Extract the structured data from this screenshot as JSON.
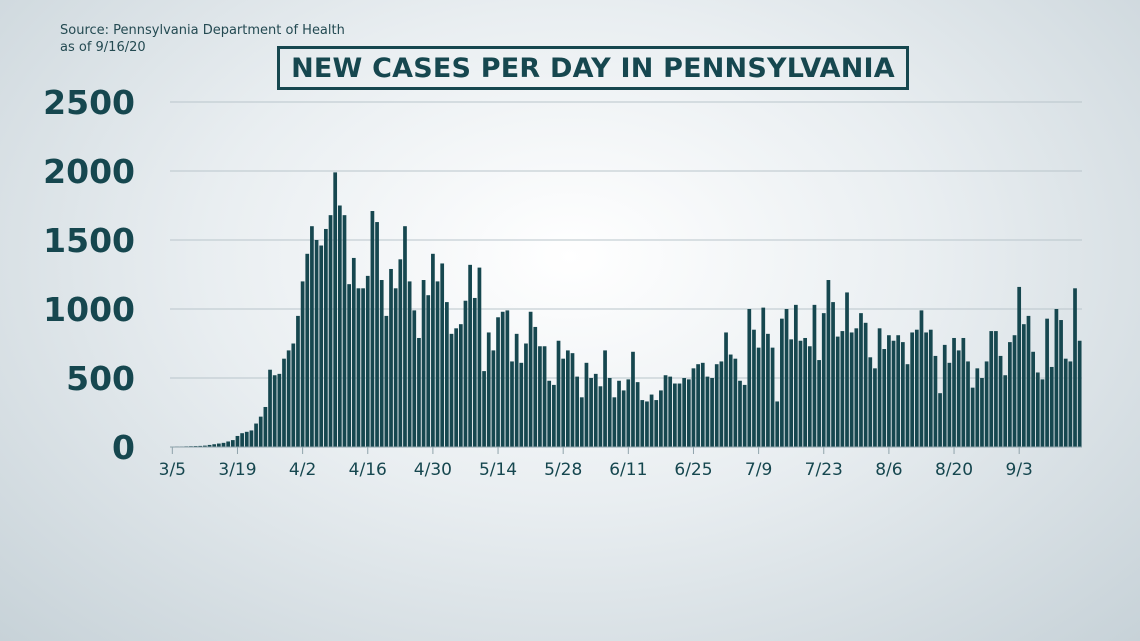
{
  "source": {
    "line1": "Source: Pennsylvania Department of Health",
    "line2": "as of 9/16/20"
  },
  "colors": {
    "bar": "#16474f",
    "grid": "#b9c5cb",
    "text": "#16474f"
  },
  "chart_data": {
    "type": "bar",
    "title": "NEW CASES PER DAY IN PENNSYLVANIA",
    "xlabel": "",
    "ylabel": "",
    "ylim": [
      0,
      2500
    ],
    "yticks": [
      0,
      500,
      1000,
      1500,
      2000,
      2500
    ],
    "grid": true,
    "xtick_labels": [
      "3/5",
      "3/19",
      "4/2",
      "4/16",
      "4/30",
      "5/14",
      "5/28",
      "6/11",
      "6/25",
      "7/9",
      "7/23",
      "8/6",
      "8/20",
      "9/3"
    ],
    "xtick_every_days": 14,
    "start_date": "3/5",
    "end_date": "9/15",
    "values": [
      2,
      4,
      4,
      5,
      6,
      7,
      8,
      10,
      15,
      20,
      25,
      30,
      40,
      50,
      80,
      100,
      110,
      120,
      170,
      220,
      290,
      560,
      520,
      530,
      640,
      700,
      750,
      950,
      1200,
      1400,
      1600,
      1500,
      1460,
      1580,
      1680,
      1990,
      1750,
      1680,
      1180,
      1370,
      1150,
      1150,
      1240,
      1710,
      1630,
      1210,
      950,
      1290,
      1150,
      1360,
      1600,
      1200,
      990,
      790,
      1210,
      1100,
      1400,
      1200,
      1330,
      1050,
      820,
      860,
      890,
      1060,
      1320,
      1080,
      1300,
      550,
      830,
      700,
      940,
      980,
      990,
      620,
      820,
      610,
      750,
      980,
      870,
      730,
      730,
      480,
      450,
      770,
      640,
      700,
      680,
      510,
      360,
      610,
      500,
      530,
      440,
      700,
      500,
      360,
      480,
      410,
      490,
      690,
      470,
      340,
      330,
      380,
      340,
      410,
      520,
      510,
      460,
      460,
      500,
      490,
      570,
      600,
      610,
      510,
      500,
      600,
      620,
      830,
      670,
      640,
      480,
      450,
      1000,
      850,
      720,
      1010,
      820,
      720,
      330,
      930,
      1000,
      780,
      1030,
      770,
      790,
      730,
      1030,
      630,
      970,
      1210,
      1050,
      800,
      840,
      1120,
      830,
      860,
      970,
      900,
      650,
      570,
      860,
      710,
      810,
      770,
      810,
      760,
      600,
      830,
      850,
      990,
      830,
      850,
      660,
      390,
      740,
      610,
      790,
      700,
      790,
      620,
      430,
      570,
      500,
      620,
      840,
      840,
      660,
      520,
      760,
      810,
      1160,
      890,
      950,
      690,
      540,
      490,
      930,
      580,
      1000,
      920,
      640,
      620,
      1150,
      770
    ]
  }
}
